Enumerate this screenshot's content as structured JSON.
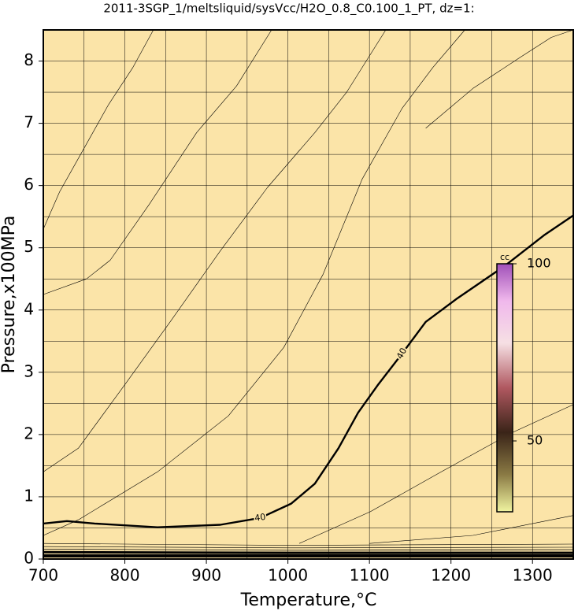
{
  "chart_data": {
    "type": "contour",
    "title": "2011-3SGP_1/meltsliquid/sysVcc/H2O_0.8_C0.100_1_PT, dz=1:",
    "x_label": "Temperature,°C",
    "y_label": "Pressure,x100MPa",
    "xlim": [
      700,
      1350
    ],
    "ylim": [
      0,
      8.5
    ],
    "xticks": [
      700,
      800,
      900,
      1000,
      1100,
      1200,
      1300
    ],
    "yticks": [
      0,
      1,
      2,
      3,
      4,
      5,
      6,
      7,
      8
    ],
    "xgrid": [
      750,
      800,
      850,
      900,
      950,
      1000,
      1050,
      1100,
      1150,
      1200,
      1250,
      1300
    ],
    "ygrid": [
      0.5,
      1,
      1.5,
      2,
      2.5,
      3,
      3.5,
      4,
      4.5,
      5,
      5.5,
      6,
      6.5,
      7,
      7.5,
      8
    ],
    "grid": true,
    "background": "#fbe4a8",
    "series": [
      {
        "color": "#000000",
        "width": 0.6,
        "x": [
          700,
          720,
          750,
          780,
          810,
          835
        ],
        "values": [
          5.3,
          5.9,
          6.6,
          7.3,
          7.9,
          8.5
        ]
      },
      {
        "color": "#000000",
        "width": 0.6,
        "x": [
          700,
          753,
          782,
          830,
          888,
          937,
          980
        ],
        "values": [
          4.25,
          4.5,
          4.8,
          5.7,
          6.85,
          7.6,
          8.5
        ]
      },
      {
        "color": "#000000",
        "width": 0.6,
        "x": [
          700,
          743,
          800,
          855,
          917,
          975,
          1033,
          1072,
          1120
        ],
        "values": [
          1.4,
          1.78,
          2.8,
          3.8,
          4.95,
          5.97,
          6.85,
          7.5,
          8.5
        ]
      },
      {
        "color": "#000000",
        "width": 0.6,
        "x": [
          700,
          743,
          840,
          927,
          995,
          1043,
          1091,
          1140,
          1178,
          1217
        ],
        "values": [
          0.38,
          0.63,
          1.4,
          2.3,
          3.4,
          4.57,
          6.1,
          7.24,
          7.9,
          8.5
        ]
      },
      {
        "color": "#000000",
        "width": 0.6,
        "x": [
          1169,
          1227,
          1285,
          1323,
          1350
        ],
        "values": [
          6.92,
          7.56,
          8.06,
          8.38,
          8.5
        ]
      },
      {
        "color": "#000000",
        "width": 0.6,
        "x": [
          1014,
          1101,
          1188,
          1275,
          1350
        ],
        "values": [
          0.25,
          0.76,
          1.4,
          2.03,
          2.48
        ]
      },
      {
        "color": "#000000",
        "width": 0.6,
        "x": [
          1100,
          1227,
          1350
        ],
        "values": [
          0.25,
          0.38,
          0.7
        ]
      },
      {
        "color": "#000000",
        "width": 2.4,
        "label": "40",
        "x": [
          700,
          729,
          763,
          840,
          917,
          966,
          1004,
          1033,
          1062,
          1086,
          1110,
          1140,
          1169,
          1208,
          1265,
          1314,
          1350
        ],
        "values": [
          0.57,
          0.61,
          0.57,
          0.51,
          0.55,
          0.66,
          0.89,
          1.21,
          1.78,
          2.35,
          2.79,
          3.3,
          3.81,
          4.19,
          4.7,
          5.2,
          5.52
        ]
      },
      {
        "color": "#000000",
        "width": 0.6,
        "x": [
          700,
          1000,
          1350
        ],
        "values": [
          0.25,
          0.22,
          0.24
        ]
      },
      {
        "color": "#000000",
        "width": 0.6,
        "x": [
          700,
          1000,
          1350
        ],
        "values": [
          0.2,
          0.18,
          0.19
        ]
      },
      {
        "color": "#000000",
        "width": 0.8,
        "x": [
          700,
          1000,
          1350
        ],
        "values": [
          0.16,
          0.14,
          0.15
        ]
      },
      {
        "color": "#000000",
        "width": 3,
        "x": [
          700,
          1000,
          1350
        ],
        "values": [
          0.11,
          0.1,
          0.1
        ]
      },
      {
        "color": "#000000",
        "width": 4,
        "x": [
          700,
          1000,
          1350
        ],
        "values": [
          0.05,
          0.05,
          0.05
        ]
      }
    ],
    "colorbar": {
      "title": "cc",
      "lim": [
        30,
        100
      ],
      "ticks": [
        50,
        100
      ]
    }
  }
}
